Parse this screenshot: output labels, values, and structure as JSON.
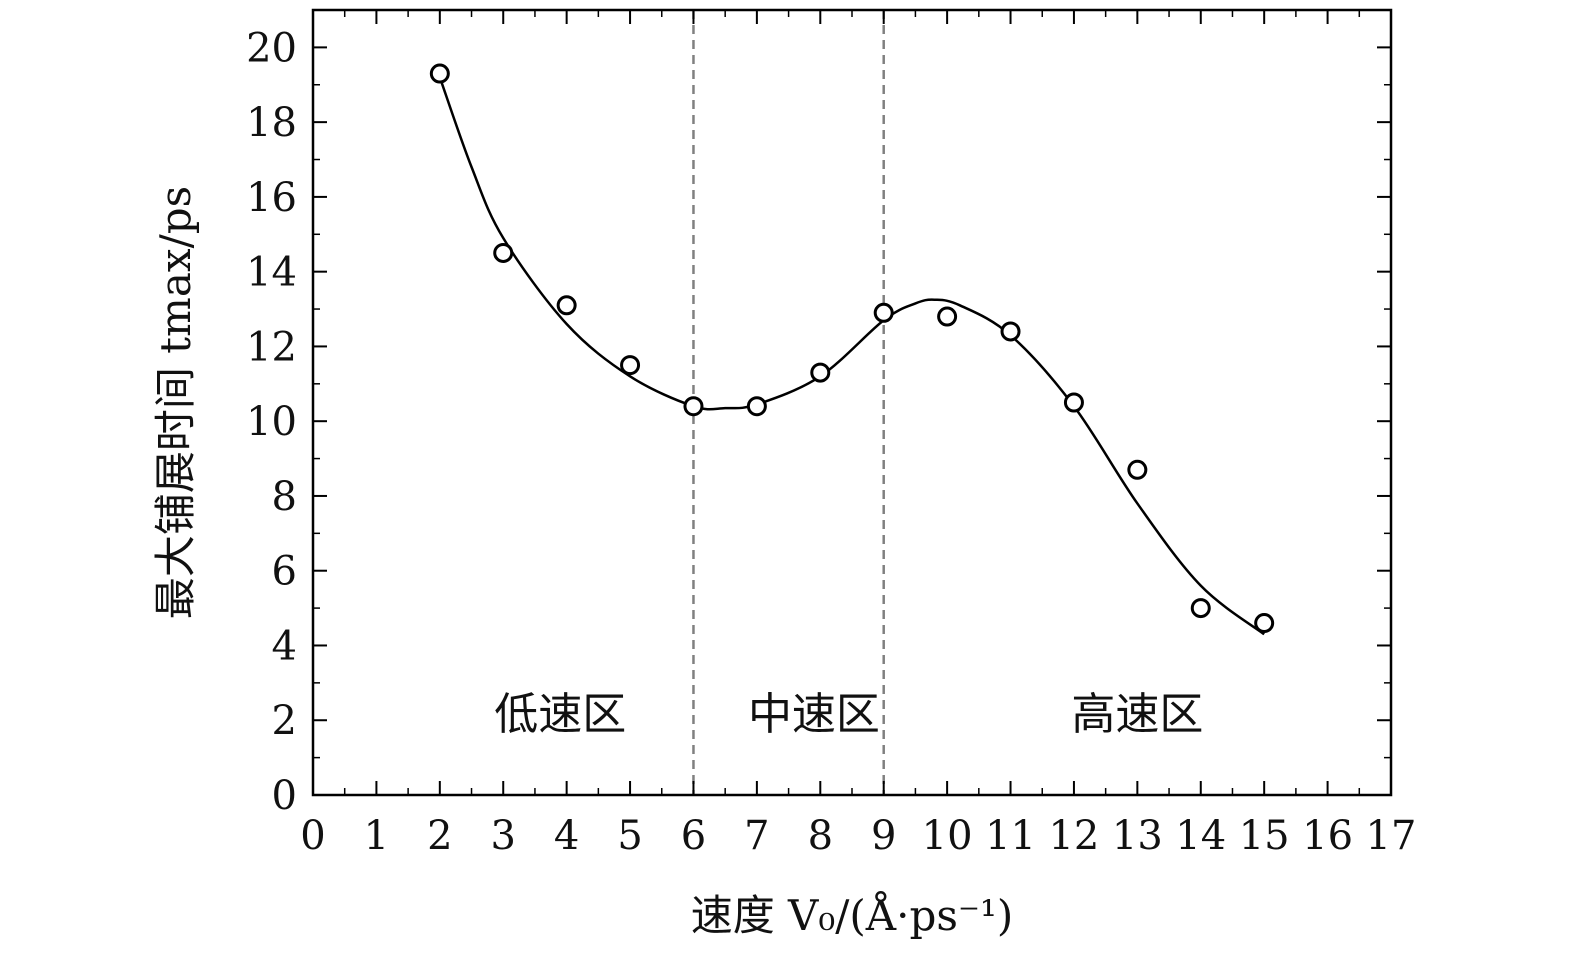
{
  "chart_data": {
    "type": "scatter",
    "title": "",
    "xlabel": "速度 V₀/(Å·ps⁻¹)",
    "ylabel": "最大铺展时间 tmax/ps",
    "xlim": [
      0,
      17
    ],
    "ylim": [
      0,
      21
    ],
    "xticks": [
      0,
      1,
      2,
      3,
      4,
      5,
      6,
      7,
      8,
      9,
      10,
      11,
      12,
      13,
      14,
      15,
      16,
      17
    ],
    "yticks": [
      0,
      2,
      4,
      6,
      8,
      10,
      12,
      14,
      16,
      18,
      20
    ],
    "grid": false,
    "series": [
      {
        "marker": "open-circle",
        "x": [
          2,
          3,
          4,
          5,
          6,
          7,
          8,
          9,
          10,
          11,
          12,
          13,
          14,
          15
        ],
        "y": [
          19.3,
          14.5,
          13.1,
          11.5,
          10.4,
          10.4,
          11.3,
          12.9,
          12.8,
          12.4,
          10.5,
          8.7,
          5.0,
          4.6
        ]
      },
      {
        "style": "smooth-line",
        "x": [
          2,
          2.5,
          3,
          4,
          5,
          6,
          6.5,
          7,
          8,
          9,
          9.5,
          9.8,
          10.2,
          11,
          12,
          13,
          14,
          15
        ],
        "y": [
          19.2,
          16.8,
          14.9,
          12.6,
          11.2,
          10.4,
          10.35,
          10.45,
          11.2,
          12.7,
          13.15,
          13.25,
          13.1,
          12.3,
          10.4,
          7.8,
          5.6,
          4.3
        ]
      }
    ],
    "vlines": [
      {
        "x": 6,
        "style": "dashed",
        "color": "#808080"
      },
      {
        "x": 9,
        "style": "dashed",
        "color": "#808080"
      }
    ],
    "annotations": [
      {
        "text": "低速区",
        "x": 3.9,
        "y": 2.2
      },
      {
        "text": "中速区",
        "x": 7.9,
        "y": 2.2
      },
      {
        "text": "高速区",
        "x": 13.0,
        "y": 2.2
      }
    ]
  }
}
